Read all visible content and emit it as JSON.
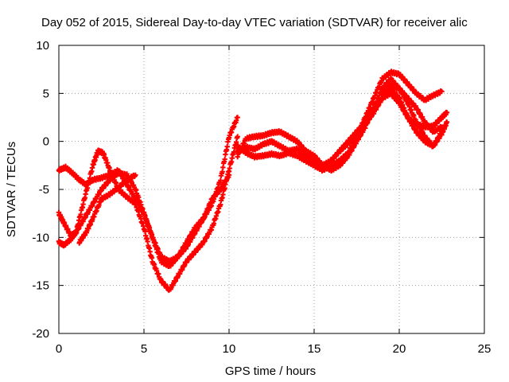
{
  "chart_data": {
    "type": "scatter",
    "title": "Day 052 of 2015, Sidereal Day-to-day VTEC variation (SDTVAR) for receiver alic",
    "xlabel": "GPS time / hours",
    "ylabel": "SDTVAR / TECUs",
    "xlim": [
      0,
      25
    ],
    "ylim": [
      -20,
      10
    ],
    "xticks": [
      "0",
      "5",
      "10",
      "15",
      "20",
      "25"
    ],
    "yticks": [
      "-20",
      "-15",
      "-10",
      "-5",
      "0",
      "5",
      "10"
    ],
    "grid": true,
    "legend": "none",
    "marker": "plus",
    "color": "#ff0000",
    "series": [
      {
        "x": [
          0.0,
          0.3,
          0.7,
          1.0,
          1.5,
          2.0,
          2.5,
          3.0,
          3.5,
          4.0,
          4.5,
          5.0,
          5.5,
          6.0,
          6.5,
          7.0,
          7.5,
          8.0,
          8.5,
          9.0,
          9.5,
          10.0,
          10.5
        ],
        "values": [
          -10.5,
          -10.8,
          -10.2,
          -9.5,
          -8.0,
          -6.5,
          -5.0,
          -4.0,
          -3.3,
          -3.5,
          -5.0,
          -7.5,
          -10.0,
          -12.5,
          -13.0,
          -12.0,
          -10.5,
          -9.0,
          -8.0,
          -6.5,
          -4.0,
          0.5,
          2.5
        ]
      },
      {
        "x": [
          0.0,
          0.3,
          0.7,
          1.0,
          1.5,
          2.0,
          2.3,
          2.6,
          3.0,
          3.5,
          4.0,
          4.5,
          5.0,
          5.5,
          6.0,
          6.5,
          7.0,
          7.5,
          8.0,
          8.5,
          9.0,
          9.5,
          10.0,
          10.5
        ],
        "values": [
          -7.5,
          -8.5,
          -9.8,
          -9.5,
          -6.0,
          -2.5,
          -1.0,
          -1.2,
          -3.0,
          -5.0,
          -5.8,
          -6.5,
          -9.0,
          -12.5,
          -14.5,
          -15.5,
          -14.0,
          -12.5,
          -11.5,
          -10.5,
          -9.0,
          -6.5,
          -3.0,
          0.5
        ]
      },
      {
        "x": [
          0.0,
          0.4,
          0.8,
          1.2,
          1.6,
          2.0,
          2.5,
          3.0,
          3.5,
          4.0,
          4.5,
          5.0,
          5.5,
          6.0,
          6.5,
          7.0,
          7.5,
          8.0,
          8.5,
          9.0,
          9.5,
          10.0
        ],
        "values": [
          -3.0,
          -2.7,
          -3.3,
          -4.0,
          -4.5,
          -4.0,
          -3.8,
          -3.5,
          -3.0,
          -4.5,
          -6.0,
          -7.5,
          -10.0,
          -12.0,
          -12.5,
          -12.0,
          -11.0,
          -9.5,
          -8.0,
          -6.0,
          -5.0,
          -3.5
        ]
      },
      {
        "x": [
          1.2,
          1.6,
          2.0,
          2.5,
          3.0,
          3.5,
          4.0,
          4.5
        ],
        "values": [
          -10.5,
          -9.5,
          -8.0,
          -6.0,
          -5.5,
          -4.8,
          -4.0,
          -3.5
        ]
      },
      {
        "x": [
          10.5,
          11.0,
          11.5,
          12.0,
          12.5,
          13.0,
          13.5,
          14.0,
          14.5,
          15.0,
          15.5,
          16.0,
          16.5,
          17.0,
          17.5,
          18.0,
          18.5,
          19.0,
          19.5,
          20.0,
          20.5,
          21.0,
          21.5,
          22.0,
          22.5
        ],
        "values": [
          -1.5,
          0.3,
          0.5,
          0.6,
          0.9,
          1.0,
          0.5,
          0.0,
          -1.0,
          -1.5,
          -2.5,
          -2.0,
          -1.0,
          -0.2,
          0.5,
          2.5,
          4.5,
          6.5,
          7.2,
          7.0,
          6.0,
          5.0,
          4.3,
          4.8,
          5.2
        ]
      },
      {
        "x": [
          10.5,
          11.0,
          11.5,
          12.0,
          12.5,
          13.0,
          13.5,
          14.0,
          14.5,
          15.0,
          15.5,
          16.0,
          16.5,
          17.0,
          17.5,
          18.0,
          18.5,
          19.0,
          19.5,
          20.0,
          20.5,
          21.0,
          21.5,
          22.0,
          22.5
        ],
        "values": [
          -1.0,
          -0.6,
          -0.8,
          -0.3,
          0.0,
          -0.5,
          -1.0,
          -0.8,
          -1.5,
          -2.0,
          -2.5,
          -3.0,
          -2.5,
          -1.5,
          0.0,
          1.5,
          3.5,
          5.5,
          6.5,
          5.5,
          4.5,
          3.5,
          2.0,
          1.0,
          1.5
        ]
      },
      {
        "x": [
          10.5,
          11.0,
          11.5,
          12.0,
          12.5,
          13.0,
          13.5,
          14.0,
          14.5,
          15.0,
          15.5,
          16.0,
          16.5,
          17.0,
          17.5,
          18.0,
          18.5,
          19.0,
          19.5,
          20.0,
          20.5,
          21.0,
          21.5,
          22.0,
          22.5
        ],
        "values": [
          -0.5,
          -1.2,
          -1.6,
          -1.5,
          -1.3,
          -1.5,
          -1.2,
          -1.5,
          -2.0,
          -2.5,
          -3.0,
          -2.5,
          -2.0,
          -1.2,
          0.5,
          1.8,
          3.0,
          4.5,
          5.5,
          4.5,
          2.5,
          1.0,
          0.0,
          -0.5,
          1.0
        ]
      },
      {
        "x": [
          19.0,
          19.5,
          20.0,
          20.5,
          21.0,
          21.5,
          22.0,
          22.5,
          22.8
        ],
        "values": [
          5.0,
          5.8,
          5.5,
          4.0,
          2.0,
          0.5,
          -0.5,
          0.8,
          2.0
        ]
      },
      {
        "x": [
          16.5,
          17.0,
          17.5,
          18.0,
          18.5,
          19.0,
          19.5,
          20.0,
          20.5,
          21.0,
          21.5,
          22.0,
          22.5,
          22.8
        ],
        "values": [
          -1.0,
          0.0,
          1.0,
          2.0,
          3.5,
          4.5,
          5.0,
          4.0,
          2.5,
          1.8,
          1.5,
          1.6,
          2.5,
          3.0
        ]
      }
    ]
  }
}
